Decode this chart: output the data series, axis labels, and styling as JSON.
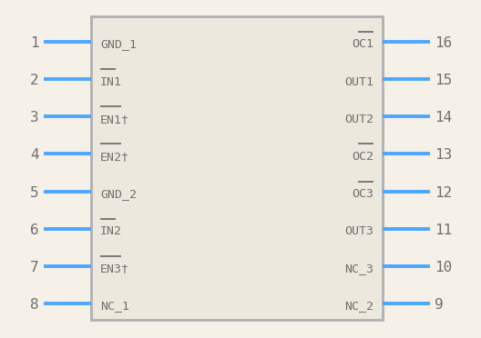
{
  "bg_color": "#f5f0e8",
  "box_color": "#b0b0b0",
  "box_fill": "#ede8de",
  "pin_color": "#4da6ff",
  "text_color": "#707070",
  "left_pins": [
    {
      "num": 1,
      "label": "GND_1",
      "overline": false
    },
    {
      "num": 2,
      "label": "IN1",
      "overline": true
    },
    {
      "num": 3,
      "label": "EN1†",
      "overline": true
    },
    {
      "num": 4,
      "label": "EN2†",
      "overline": true
    },
    {
      "num": 5,
      "label": "GND_2",
      "overline": false
    },
    {
      "num": 6,
      "label": "IN2",
      "overline": true
    },
    {
      "num": 7,
      "label": "EN3†",
      "overline": true
    },
    {
      "num": 8,
      "label": "NC_1",
      "overline": false
    }
  ],
  "right_pins": [
    {
      "num": 16,
      "label": "OC1",
      "overline": true
    },
    {
      "num": 15,
      "label": "OUT1",
      "overline": false
    },
    {
      "num": 14,
      "label": "OUT2",
      "overline": false
    },
    {
      "num": 13,
      "label": "OC2",
      "overline": true
    },
    {
      "num": 12,
      "label": "OC3",
      "overline": true
    },
    {
      "num": 11,
      "label": "OUT3",
      "overline": false
    },
    {
      "num": 10,
      "label": "NC_3",
      "overline": false
    },
    {
      "num": 9,
      "label": "NC_2",
      "overline": false
    }
  ]
}
